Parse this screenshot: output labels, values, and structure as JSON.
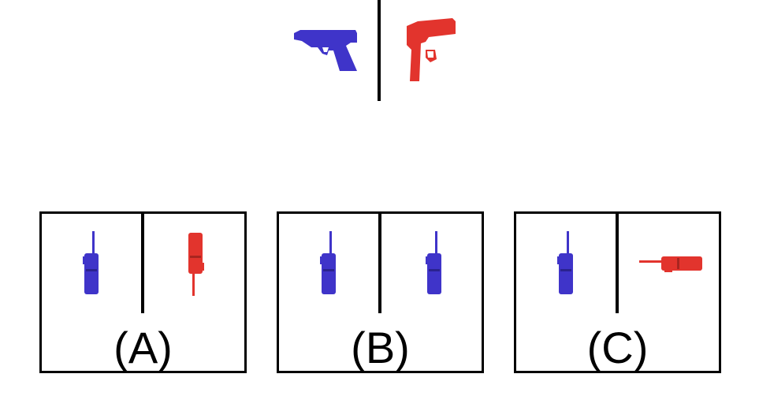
{
  "colors": {
    "blue": "#3f34c9",
    "red": "#e2342d"
  },
  "example": {
    "left_icon": "pistol-icon",
    "right_icon": "pistol-icon"
  },
  "options": [
    {
      "label": "(A)",
      "left_icon": "walkie-talkie-icon",
      "right_icon": "walkie-talkie-icon"
    },
    {
      "label": "(B)",
      "left_icon": "walkie-talkie-icon",
      "right_icon": "walkie-talkie-icon"
    },
    {
      "label": "(C)",
      "left_icon": "walkie-talkie-icon",
      "right_icon": "walkie-talkie-icon"
    }
  ]
}
